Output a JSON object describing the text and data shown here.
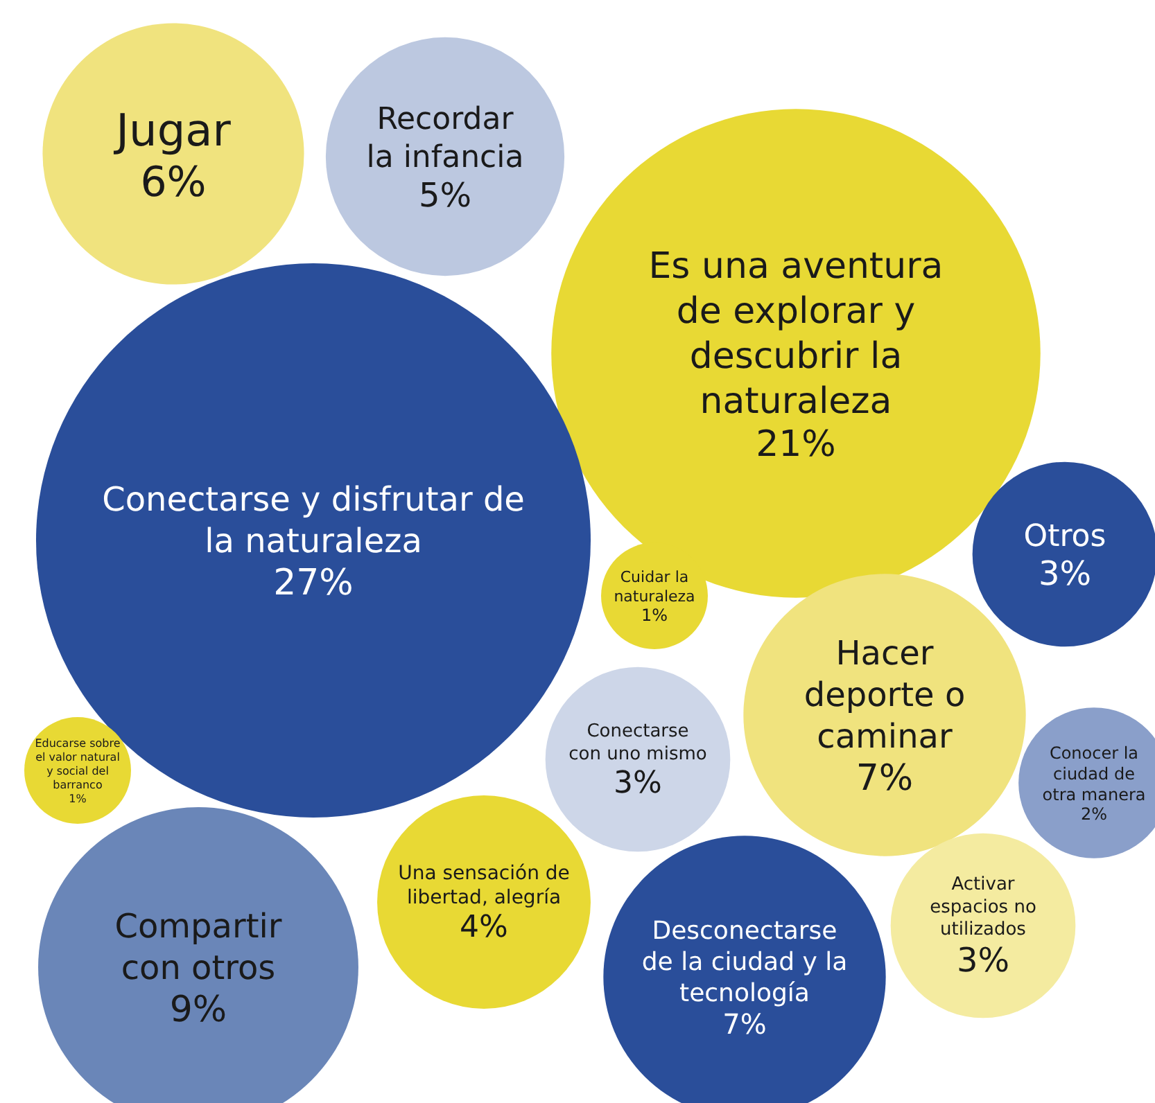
{
  "chart_data": {
    "type": "other",
    "categories": [
      "Jugar",
      "Recordar la infancia",
      "Es una aventura de explorar y descubrir la naturaleza",
      "Conectarse y disfrutar de la naturaleza",
      "Otros",
      "Cuidar la naturaleza",
      "Hacer deporte o caminar",
      "Conectarse con uno mismo",
      "Educarse sobre el valor natural y social del barranco",
      "Conocer la ciudad de otra manera",
      "Compartir con otros",
      "Una sensación de libertad, alegría",
      "Desconectarse de la ciudad y la tecnología",
      "Activar espacios no utilizados"
    ],
    "values": [
      6,
      5,
      21,
      27,
      3,
      1,
      7,
      3,
      1,
      2,
      9,
      4,
      7,
      3
    ],
    "value_labels": [
      "6%",
      "5%",
      "21%",
      "27%",
      "3%",
      "1%",
      "7%",
      "3%",
      "1%",
      "2%",
      "9%",
      "4%",
      "7%",
      "3%"
    ],
    "colors": [
      "#f0e37e",
      "#bcc8e0",
      "#e8d934",
      "#2a4e9a",
      "#2a4e9a",
      "#e8d934",
      "#f0e37e",
      "#cdd6e8",
      "#e8d934",
      "#8a9fca",
      "#6a86b8",
      "#e8d934",
      "#2a4e9a",
      "#f4eba0"
    ]
  }
}
